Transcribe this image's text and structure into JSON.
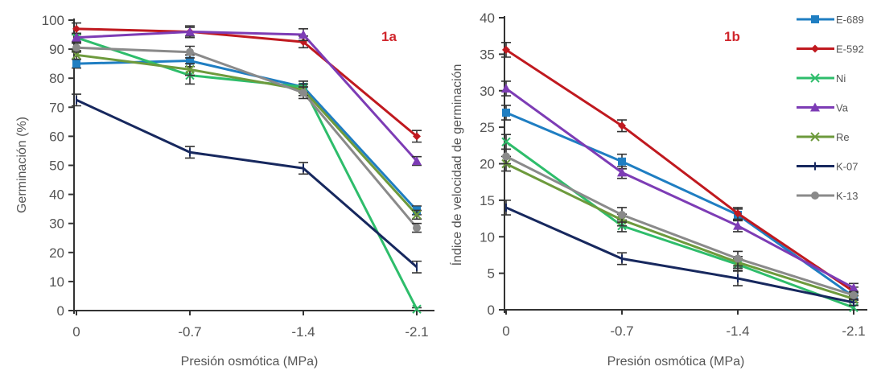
{
  "chart_data": [
    {
      "type": "line",
      "panel_label": "1a",
      "title": "",
      "xlabel": "Presión osmótica  (MPa)",
      "ylabel": "Germinación  (%)",
      "x": [
        0,
        -0.7,
        -1.4,
        -2.1
      ],
      "x_tick_labels": [
        "0",
        "-0.7",
        "-1.4",
        "-2.1"
      ],
      "ylim": [
        0,
        100
      ],
      "y_ticks": [
        0,
        10,
        20,
        30,
        40,
        50,
        60,
        70,
        80,
        90,
        100
      ],
      "grid": false,
      "error_bars": true,
      "series": [
        {
          "name": "E-689",
          "color": "#1f7ec2",
          "marker": "square",
          "values": [
            85,
            86,
            77,
            34.5
          ],
          "errors": [
            1.5,
            2,
            2,
            1.5
          ]
        },
        {
          "name": "E-592",
          "color": "#c0191f",
          "marker": "diamond",
          "values": [
            97,
            96,
            92.5,
            60
          ],
          "errors": [
            2,
            1.5,
            2,
            2
          ]
        },
        {
          "name": "Ni",
          "color": "#2ebd6b",
          "marker": "x",
          "values": [
            94,
            81,
            77,
            0.5
          ],
          "errors": [
            1.5,
            3,
            2,
            0.5
          ]
        },
        {
          "name": "Va",
          "color": "#7d3cb5",
          "marker": "triangle",
          "values": [
            94,
            96,
            95,
            51.5
          ],
          "errors": [
            1.5,
            2,
            2,
            1.5
          ]
        },
        {
          "name": "Re",
          "color": "#6d9a3c",
          "marker": "x",
          "values": [
            88,
            83,
            76,
            33
          ],
          "errors": [
            1.5,
            2,
            2,
            1.5
          ]
        },
        {
          "name": "K-07",
          "color": "#17285e",
          "marker": "plus",
          "values": [
            72.5,
            54.5,
            49,
            15
          ],
          "errors": [
            2,
            2,
            2,
            2
          ]
        },
        {
          "name": "K-13",
          "color": "#8a8a8a",
          "marker": "circle",
          "values": [
            90.5,
            89,
            75,
            28.5
          ],
          "errors": [
            1.5,
            2,
            2,
            1.5
          ]
        }
      ]
    },
    {
      "type": "line",
      "panel_label": "1b",
      "title": "",
      "xlabel": "Presión osmótica  (MPa)",
      "ylabel": "Índice de velocidad  de germinación",
      "x": [
        0,
        -0.7,
        -1.4,
        -2.1
      ],
      "x_tick_labels": [
        "0",
        "-0.7",
        "-1.4",
        "-2.1"
      ],
      "ylim": [
        0,
        40
      ],
      "y_ticks": [
        0,
        5,
        10,
        15,
        20,
        25,
        30,
        35,
        40
      ],
      "grid": false,
      "error_bars": true,
      "legend_position": "top-right",
      "series": [
        {
          "name": "E-689",
          "color": "#1f7ec2",
          "marker": "square",
          "values": [
            27,
            20.3,
            13,
            1.8
          ],
          "errors": [
            1,
            1,
            0.8,
            0.5
          ]
        },
        {
          "name": "E-592",
          "color": "#c0191f",
          "marker": "diamond",
          "values": [
            35.6,
            25.2,
            13.2,
            2.5
          ],
          "errors": [
            1,
            0.8,
            0.8,
            0.6
          ]
        },
        {
          "name": "Ni",
          "color": "#2ebd6b",
          "marker": "x",
          "values": [
            23,
            11.5,
            6.2,
            0.3
          ],
          "errors": [
            1,
            0.8,
            0.8,
            0.3
          ]
        },
        {
          "name": "Va",
          "color": "#7d3cb5",
          "marker": "triangle",
          "values": [
            30.3,
            18.8,
            11.5,
            3
          ],
          "errors": [
            1,
            0.8,
            0.8,
            0.6
          ]
        },
        {
          "name": "Re",
          "color": "#6d9a3c",
          "marker": "x",
          "values": [
            20,
            12.3,
            6.5,
            1.5
          ],
          "errors": [
            1,
            0.8,
            0.8,
            0.5
          ]
        },
        {
          "name": "K-07",
          "color": "#17285e",
          "marker": "plus",
          "values": [
            14,
            7,
            4.3,
            1
          ],
          "errors": [
            1,
            0.8,
            1,
            0.4
          ]
        },
        {
          "name": "K-13",
          "color": "#8a8a8a",
          "marker": "circle",
          "values": [
            21,
            13,
            7,
            2
          ],
          "errors": [
            1,
            1,
            1,
            0.5
          ]
        }
      ]
    }
  ]
}
